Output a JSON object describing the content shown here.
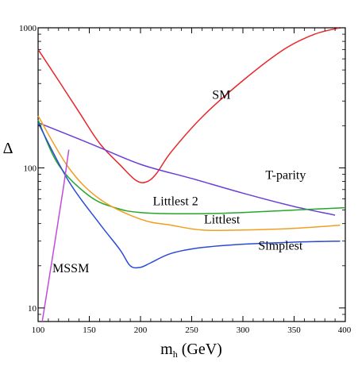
{
  "chart_data": {
    "type": "line",
    "title": "",
    "xlabel": "m_h (GeV)",
    "xlabel_main": "m",
    "xlabel_sub": "h",
    "xlabel_rest": " (GeV)",
    "ylabel": "Δ",
    "xlim": [
      100,
      400
    ],
    "ylim": [
      8,
      1000
    ],
    "yscale": "log",
    "grid": false,
    "x_ticks": [
      100,
      150,
      200,
      250,
      300,
      350,
      400
    ],
    "x_tick_labels": [
      "100",
      "150",
      "200",
      "250",
      "300",
      "350",
      "400"
    ],
    "y_ticks": [
      10,
      100,
      1000
    ],
    "y_tick_labels": [
      "10",
      "100",
      "1000"
    ],
    "series": [
      {
        "name": "SM",
        "color": "#e8262a",
        "x": [
          100,
          120,
          140,
          160,
          180,
          195,
          205,
          215,
          230,
          260,
          300,
          340,
          370,
          395
        ],
        "y": [
          700,
          420,
          250,
          150,
          105,
          82,
          79,
          90,
          130,
          230,
          420,
          700,
          900,
          1000
        ]
      },
      {
        "name": "T-parity",
        "color": "#6a3fd8",
        "x": [
          100,
          150,
          200,
          250,
          300,
          350,
          390
        ],
        "y": [
          210,
          150,
          106,
          84,
          66,
          53,
          46
        ]
      },
      {
        "name": "Littlest 2",
        "color": "#23a82a",
        "x": [
          100,
          120,
          150,
          175,
          200,
          250,
          300,
          350,
          400
        ],
        "y": [
          220,
          105,
          63,
          52,
          48,
          47,
          48,
          50,
          52
        ]
      },
      {
        "name": "Littlest",
        "color": "#f29e1e",
        "x": [
          100,
          130,
          160,
          200,
          230,
          260,
          300,
          350,
          395
        ],
        "y": [
          235,
          100,
          60,
          43,
          39,
          36,
          36,
          37,
          39
        ]
      },
      {
        "name": "Simplest",
        "color": "#2b4ad8",
        "x": [
          100,
          130,
          160,
          180,
          190,
          200,
          210,
          230,
          260,
          300,
          350,
          395
        ],
        "y": [
          210,
          80,
          40,
          26,
          20,
          19.5,
          21,
          24.5,
          27,
          28.5,
          29.5,
          30
        ]
      },
      {
        "name": "MSSM",
        "color": "#c04cd8",
        "x": [
          104,
          110,
          118,
          125,
          130
        ],
        "y": [
          8,
          15,
          35,
          75,
          135
        ]
      }
    ],
    "labels": [
      {
        "text": "SM",
        "x": 270,
        "y": 310
      },
      {
        "text": "T-parity",
        "x": 322,
        "y": 83
      },
      {
        "text": "Littlest 2",
        "x": 212,
        "y": 54
      },
      {
        "text": "Littlest",
        "x": 262,
        "y": 40
      },
      {
        "text": "Simplest",
        "x": 315,
        "y": 26
      },
      {
        "text": "MSSM",
        "x": 114,
        "y": 18
      }
    ]
  }
}
